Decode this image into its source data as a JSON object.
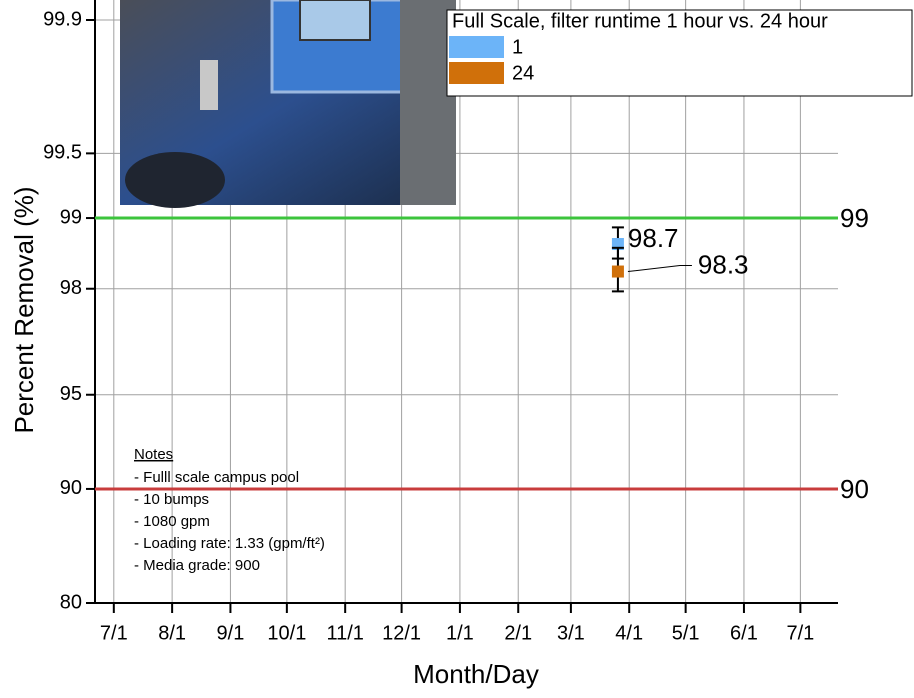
{
  "chart_data": {
    "type": "scatter",
    "yscale": "probability",
    "xlabel": "Month/Day",
    "ylabel": "Percent Removal (%)",
    "xlim": [
      -10,
      385
    ],
    "ylim": [
      80,
      99.9
    ],
    "xticks": [
      {
        "value": 0,
        "label": "7/1"
      },
      {
        "value": 31,
        "label": "8/1"
      },
      {
        "value": 62,
        "label": "9/1"
      },
      {
        "value": 92,
        "label": "10/1"
      },
      {
        "value": 123,
        "label": "11/1"
      },
      {
        "value": 153,
        "label": "12/1"
      },
      {
        "value": 184,
        "label": "1/1"
      },
      {
        "value": 215,
        "label": "2/1"
      },
      {
        "value": 243,
        "label": "3/1"
      },
      {
        "value": 274,
        "label": "4/1"
      },
      {
        "value": 304,
        "label": "5/1"
      },
      {
        "value": 335,
        "label": "6/1"
      },
      {
        "value": 365,
        "label": "7/1"
      }
    ],
    "yticks": [
      80,
      90,
      95,
      98,
      99,
      99.5,
      99.9
    ],
    "grid": true,
    "legend_title": "Full Scale, filter runtime 1 hour vs. 24 hour",
    "series": [
      {
        "name": "1",
        "color": "#6cb4f8",
        "x": [
          268
        ],
        "values": [
          98.7
        ],
        "errors": [
          0.2
        ]
      },
      {
        "name": "24",
        "color": "#d0700a",
        "x": [
          268
        ],
        "values": [
          98.3
        ],
        "errors": [
          0.35
        ]
      }
    ],
    "reference_lines": [
      {
        "value": 99,
        "color": "#3cc43c"
      },
      {
        "value": 90,
        "color": "#c83c3c"
      }
    ],
    "notes": {
      "heading": "Notes",
      "lines": [
        "- Fulll scale campus pool",
        "- 10 bumps",
        "- 1080 gpm",
        "- Loading rate: 1.33 (gpm/ft²)",
        "- Media grade: 900"
      ]
    }
  }
}
